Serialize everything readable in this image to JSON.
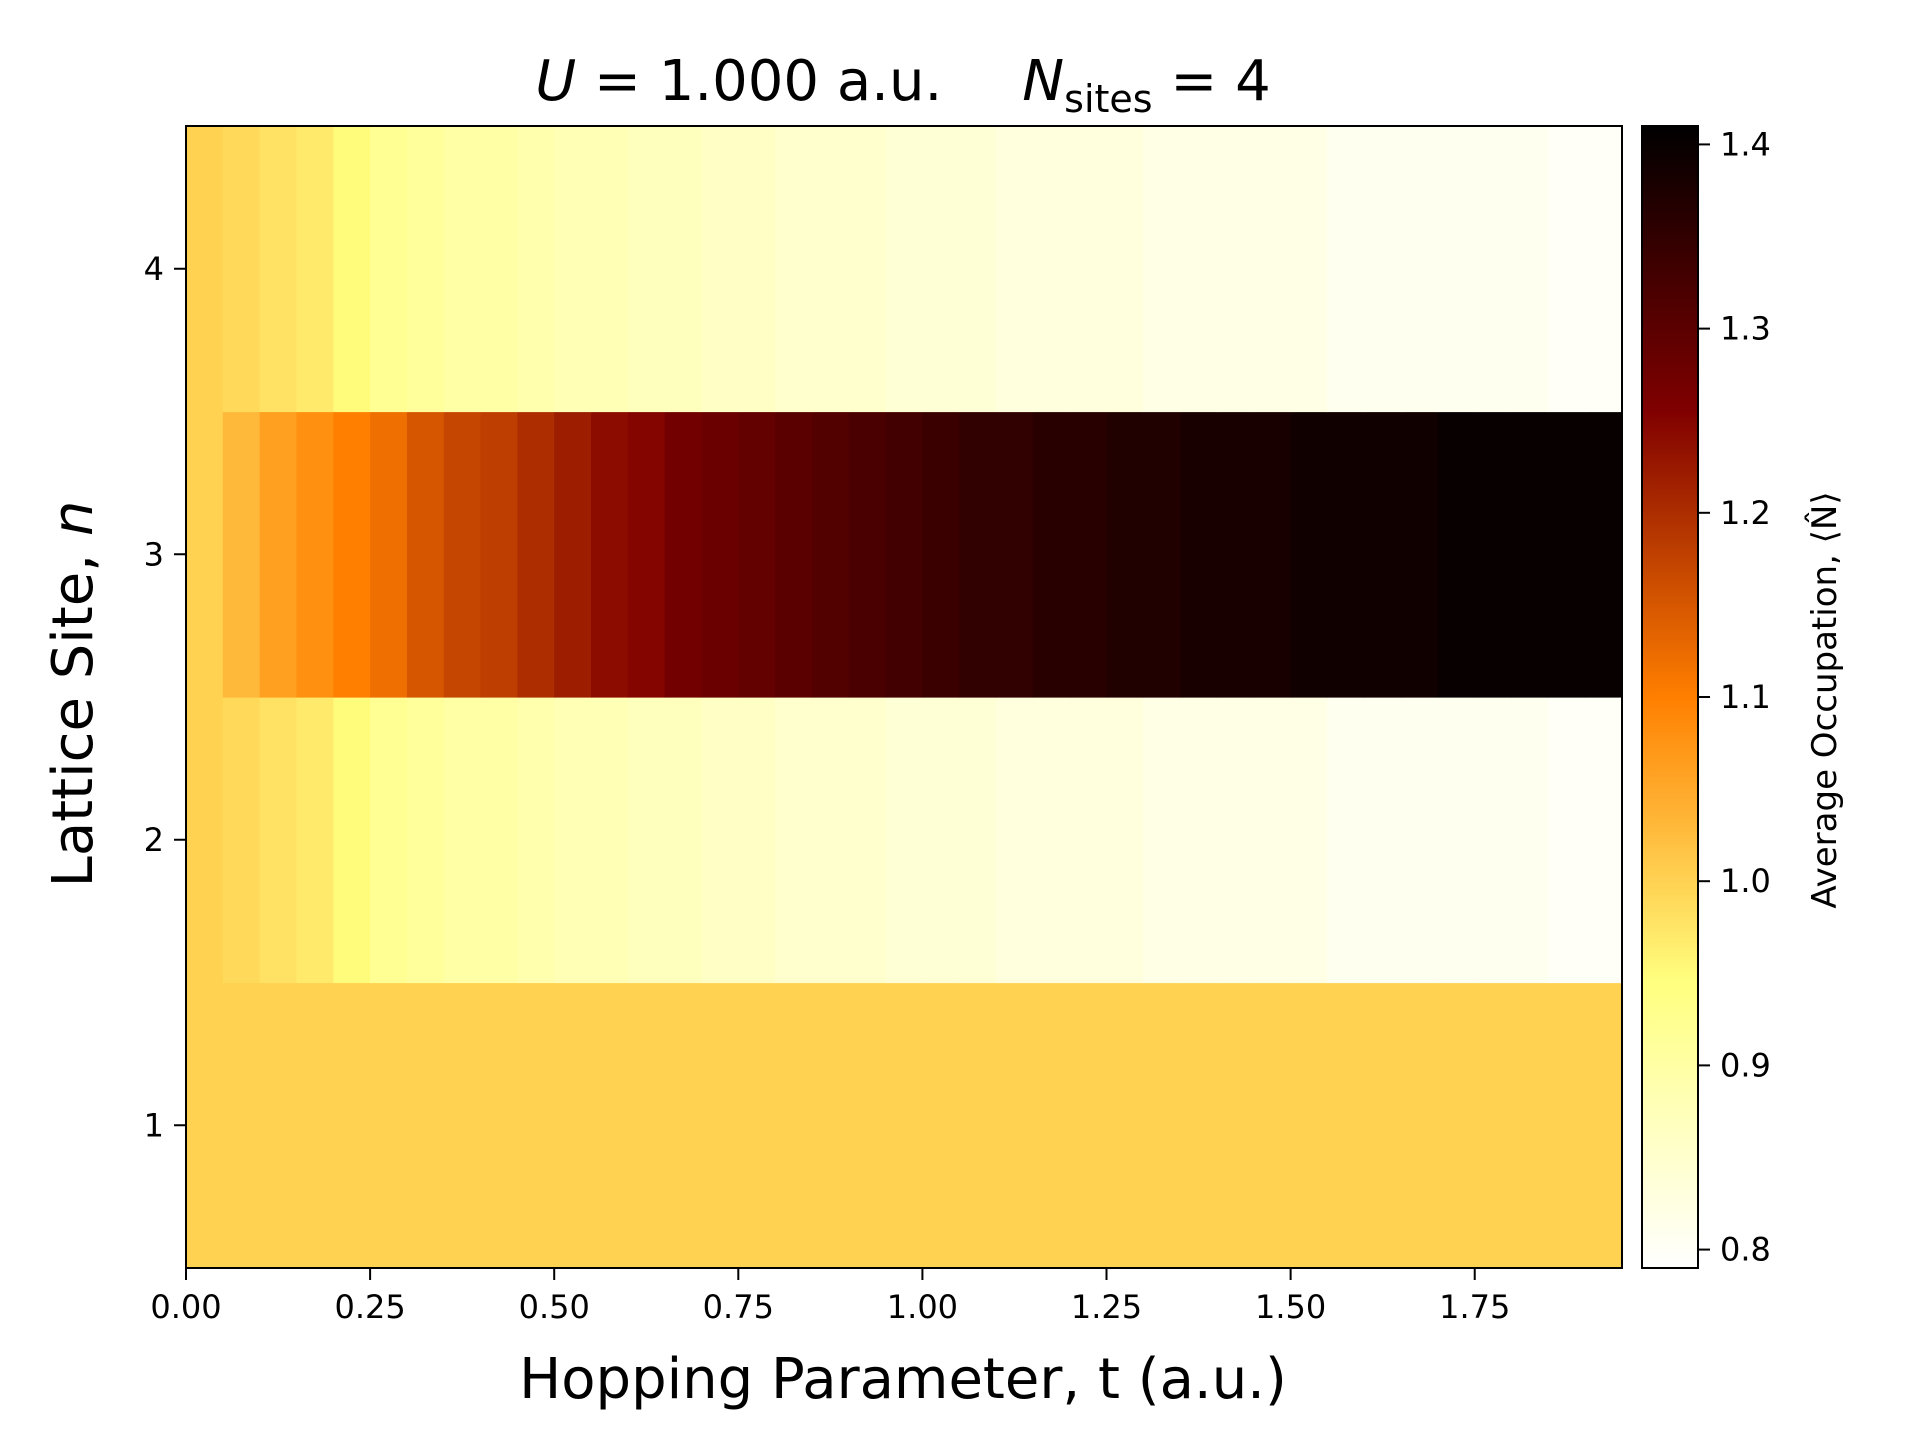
{
  "title": {
    "u_symbol": "U",
    "u_value": " = 1.000 a.u.",
    "n_symbol": "N",
    "n_subscript": "sites",
    "n_value": " = 4"
  },
  "chart_data": {
    "type": "heatmap",
    "xlabel": "Hopping Parameter, t (a.u.)",
    "ylabel_text": "Lattice Site, ",
    "ylabel_symbol": "n",
    "colorbar_label": "Average Occupation, ⟨N̂⟩",
    "colormap": "afmhot_r",
    "color_range": [
      0.79,
      1.41
    ],
    "x_range": [
      0.0,
      1.95
    ],
    "y_range": [
      0.5,
      4.5
    ],
    "x_ticks": [
      {
        "value": 0.0,
        "label": "0.00"
      },
      {
        "value": 0.25,
        "label": "0.25"
      },
      {
        "value": 0.5,
        "label": "0.50"
      },
      {
        "value": 0.75,
        "label": "0.75"
      },
      {
        "value": 1.0,
        "label": "1.00"
      },
      {
        "value": 1.25,
        "label": "1.25"
      },
      {
        "value": 1.5,
        "label": "1.50"
      },
      {
        "value": 1.75,
        "label": "1.75"
      }
    ],
    "y_ticks": [
      {
        "value": 1,
        "label": "1"
      },
      {
        "value": 2,
        "label": "2"
      },
      {
        "value": 3,
        "label": "3"
      },
      {
        "value": 4,
        "label": "4"
      }
    ],
    "colorbar_ticks": [
      {
        "value": 0.8,
        "label": "0.8"
      },
      {
        "value": 0.9,
        "label": "0.9"
      },
      {
        "value": 1.0,
        "label": "1.0"
      },
      {
        "value": 1.1,
        "label": "1.1"
      },
      {
        "value": 1.2,
        "label": "1.2"
      },
      {
        "value": 1.3,
        "label": "1.3"
      },
      {
        "value": 1.4,
        "label": "1.4"
      }
    ],
    "x": [
      0.0,
      0.05,
      0.1,
      0.15,
      0.2,
      0.25,
      0.3,
      0.35,
      0.4,
      0.45,
      0.5,
      0.55,
      0.6,
      0.65,
      0.7,
      0.75,
      0.8,
      0.85,
      0.9,
      0.95,
      1.0,
      1.05,
      1.1,
      1.15,
      1.2,
      1.25,
      1.3,
      1.35,
      1.4,
      1.45,
      1.5,
      1.55,
      1.6,
      1.65,
      1.7,
      1.75,
      1.8,
      1.85,
      1.9
    ],
    "y": [
      1,
      2,
      3,
      4
    ],
    "z": [
      [
        1.0,
        1.0,
        1.0,
        1.0,
        1.0,
        1.0,
        1.0,
        1.0,
        1.0,
        1.0,
        1.0,
        1.0,
        1.0,
        1.0,
        1.0,
        1.0,
        1.0,
        1.0,
        1.0,
        1.0,
        1.0,
        1.0,
        1.0,
        1.0,
        1.0,
        1.0,
        1.0,
        1.0,
        1.0,
        1.0,
        1.0,
        1.0,
        1.0,
        1.0,
        1.0,
        1.0,
        1.0,
        1.0,
        1.0
      ],
      [
        1.0,
        0.99,
        0.98,
        0.97,
        0.95,
        0.92,
        0.91,
        0.9,
        0.9,
        0.89,
        0.88,
        0.88,
        0.87,
        0.87,
        0.86,
        0.86,
        0.85,
        0.85,
        0.85,
        0.84,
        0.84,
        0.84,
        0.83,
        0.83,
        0.83,
        0.83,
        0.82,
        0.82,
        0.82,
        0.82,
        0.82,
        0.81,
        0.81,
        0.81,
        0.81,
        0.81,
        0.81,
        0.8,
        0.8
      ],
      [
        1.0,
        1.03,
        1.06,
        1.08,
        1.1,
        1.12,
        1.15,
        1.17,
        1.18,
        1.2,
        1.22,
        1.24,
        1.25,
        1.27,
        1.28,
        1.29,
        1.3,
        1.31,
        1.32,
        1.33,
        1.34,
        1.35,
        1.35,
        1.36,
        1.36,
        1.37,
        1.37,
        1.38,
        1.38,
        1.38,
        1.39,
        1.39,
        1.39,
        1.39,
        1.4,
        1.4,
        1.4,
        1.4,
        1.4
      ],
      [
        1.0,
        0.99,
        0.98,
        0.97,
        0.95,
        0.92,
        0.91,
        0.9,
        0.9,
        0.89,
        0.88,
        0.88,
        0.87,
        0.87,
        0.86,
        0.86,
        0.85,
        0.85,
        0.85,
        0.84,
        0.84,
        0.84,
        0.83,
        0.83,
        0.83,
        0.83,
        0.82,
        0.82,
        0.82,
        0.82,
        0.82,
        0.81,
        0.81,
        0.81,
        0.81,
        0.81,
        0.81,
        0.8,
        0.8
      ]
    ]
  }
}
